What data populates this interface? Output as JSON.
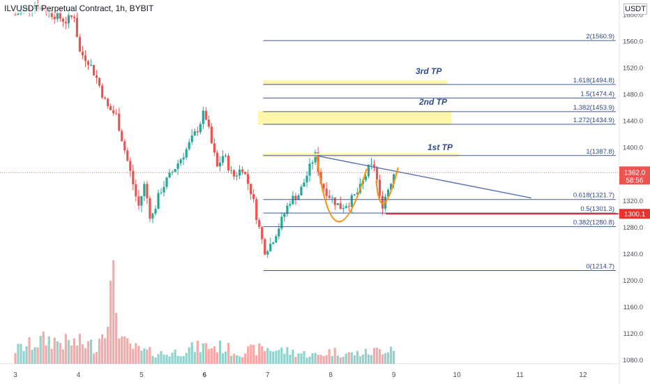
{
  "header": {
    "title": "ILVUSDT Perpetual Contract, 1h, BYBIT",
    "currency": "USDT"
  },
  "colors": {
    "up": "#26a69a",
    "down": "#ef5350",
    "fib": "#3d5a99",
    "highlight": "#fff59d",
    "trend": "#5a6fb0",
    "cup": "#f7941d",
    "stop": "#e8322d",
    "current": "#ef5350"
  },
  "price_badges": {
    "current_price": "1362.0",
    "countdown": "58:56",
    "stop_price": "1300.1"
  },
  "chart_data": {
    "type": "candlestick",
    "ylim": [
      1060,
      1640
    ],
    "y_ticks": [
      1080,
      1120,
      1160,
      1200,
      1240,
      1280,
      1320,
      1360,
      1400,
      1440,
      1480,
      1520,
      1560,
      1600
    ],
    "x_ticks": [
      "3",
      "4",
      "5",
      "6",
      "7",
      "8",
      "9",
      "10",
      "11",
      "12"
    ],
    "fib_levels": [
      {
        "label": "2(1560.9)",
        "price": 1560.9
      },
      {
        "label": "1.618(1494.8)",
        "price": 1494.8
      },
      {
        "label": "1.5(1474.4)",
        "price": 1474.4
      },
      {
        "label": "1.382(1453.9)",
        "price": 1453.9
      },
      {
        "label": "1.272(1434.9)",
        "price": 1434.9
      },
      {
        "label": "1(1387.8)",
        "price": 1387.8
      },
      {
        "label": "0.618(1321.7)",
        "price": 1321.7
      },
      {
        "label": "0.5(1301.3)",
        "price": 1301.3
      },
      {
        "label": "0.382(1280.8)",
        "price": 1280.8
      },
      {
        "label": "0(1214.7)",
        "price": 1214.7
      }
    ],
    "targets": [
      {
        "label": "3rd TP",
        "low": 1494.8,
        "high": 1500
      },
      {
        "label": "2nd TP",
        "low": 1434.9,
        "high": 1453.9
      },
      {
        "label": "1st TP",
        "low": 1387.8,
        "high": 1390
      }
    ],
    "close_path": [
      [
        3.0,
        1600
      ],
      [
        3.3,
        1615
      ],
      [
        3.5,
        1606
      ],
      [
        3.8,
        1590
      ],
      [
        3.95,
        1600
      ],
      [
        4.0,
        1545
      ],
      [
        4.15,
        1532
      ],
      [
        4.3,
        1502
      ],
      [
        4.45,
        1462
      ],
      [
        4.6,
        1448
      ],
      [
        4.75,
        1390
      ],
      [
        4.85,
        1352
      ],
      [
        4.95,
        1310
      ],
      [
        5.05,
        1345
      ],
      [
        5.15,
        1290
      ],
      [
        5.3,
        1335
      ],
      [
        5.5,
        1365
      ],
      [
        5.7,
        1395
      ],
      [
        5.9,
        1430
      ],
      [
        6.0,
        1455
      ],
      [
        6.1,
        1410
      ],
      [
        6.2,
        1370
      ],
      [
        6.3,
        1390
      ],
      [
        6.45,
        1355
      ],
      [
        6.6,
        1370
      ],
      [
        6.75,
        1330
      ],
      [
        6.85,
        1285
      ],
      [
        6.95,
        1245
      ],
      [
        7.05,
        1255
      ],
      [
        7.2,
        1285
      ],
      [
        7.35,
        1320
      ],
      [
        7.5,
        1330
      ],
      [
        7.65,
        1365
      ],
      [
        7.75,
        1390
      ],
      [
        7.85,
        1345
      ],
      [
        8.0,
        1325
      ],
      [
        8.15,
        1310
      ],
      [
        8.3,
        1318
      ],
      [
        8.45,
        1335
      ],
      [
        8.6,
        1368
      ],
      [
        8.7,
        1372
      ],
      [
        8.8,
        1308
      ],
      [
        8.88,
        1330
      ],
      [
        9.0,
        1362
      ]
    ],
    "volume_path": [
      [
        3.0,
        20
      ],
      [
        3.5,
        35
      ],
      [
        3.8,
        30
      ],
      [
        4.0,
        30
      ],
      [
        4.3,
        25
      ],
      [
        4.55,
        110
      ],
      [
        4.7,
        30
      ],
      [
        5.0,
        18
      ],
      [
        5.4,
        14
      ],
      [
        5.8,
        22
      ],
      [
        6.0,
        25
      ],
      [
        6.3,
        24
      ],
      [
        6.5,
        16
      ],
      [
        6.8,
        20
      ],
      [
        7.0,
        22
      ],
      [
        7.3,
        18
      ],
      [
        7.6,
        14
      ],
      [
        7.8,
        12
      ],
      [
        8.0,
        18
      ],
      [
        8.3,
        14
      ],
      [
        8.6,
        16
      ],
      [
        8.8,
        20
      ],
      [
        9.0,
        26
      ]
    ]
  }
}
